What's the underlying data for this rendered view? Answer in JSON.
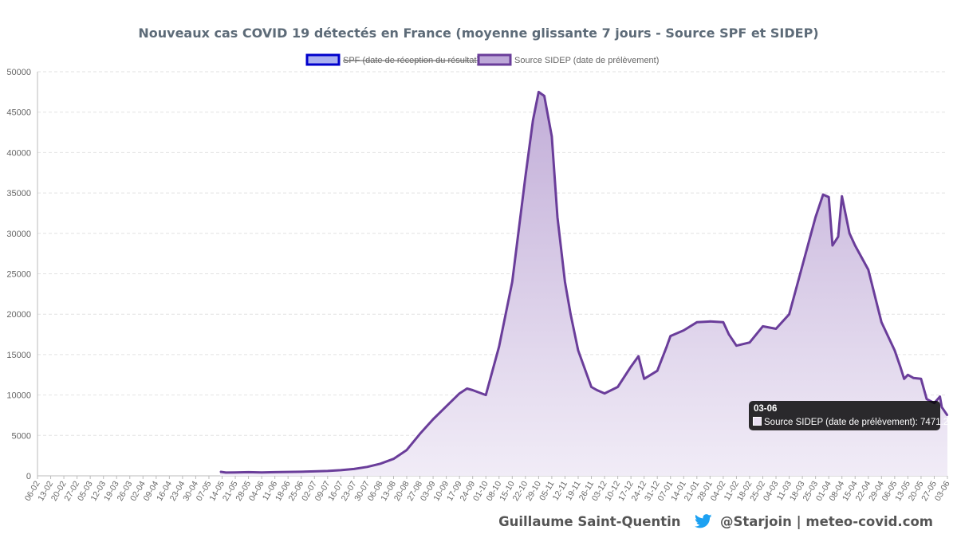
{
  "title": "Nouveaux cas COVID 19 détectés en France (moyenne glissante 7 jours - Source SPF et SIDEP)",
  "footer": {
    "author": "Guillaume Saint-Quentin",
    "handle": "@Starjoin | meteo-covid.com",
    "icon": "twitter-bird-icon"
  },
  "tooltip": {
    "title": "03-06",
    "series": "Source SIDEP (date de prélèvement)",
    "value": "7471.29"
  },
  "colors": {
    "line": "#6a3d9a",
    "fill_top": "#c2aed8",
    "fill_bottom": "#f1ecf7",
    "spf": "#0000cc",
    "grid": "#e2e2e2",
    "text": "#666666"
  },
  "chart_data": {
    "type": "area",
    "legend": [
      {
        "name": "SPF (date de réception du résultat)",
        "hidden": true,
        "color": "#0000cc"
      },
      {
        "name": "Source SIDEP (date de prélèvement)",
        "hidden": false,
        "color": "#6a3d9a"
      }
    ],
    "legend_position": "top",
    "grid": true,
    "ylim": [
      0,
      50000
    ],
    "yticks": [
      "0",
      "5000",
      "10000",
      "15000",
      "20000",
      "25000",
      "30000",
      "35000",
      "40000",
      "45000",
      "50000"
    ],
    "xticks": [
      "06-02",
      "13-02",
      "20-02",
      "27-02",
      "05-03",
      "12-03",
      "19-03",
      "26-03",
      "02-04",
      "09-04",
      "16-04",
      "23-04",
      "30-04",
      "07-05",
      "14-05",
      "21-05",
      "28-05",
      "04-06",
      "11-06",
      "18-06",
      "25-06",
      "02-07",
      "09-07",
      "16-07",
      "23-07",
      "30-07",
      "06-08",
      "13-08",
      "20-08",
      "27-08",
      "03-09",
      "10-09",
      "17-09",
      "24-09",
      "01-10",
      "08-10",
      "15-10",
      "22-10",
      "29-10",
      "05-11",
      "12-11",
      "19-11",
      "26-11",
      "03-12",
      "10-12",
      "17-12",
      "24-12",
      "31-12",
      "07-01",
      "14-01",
      "21-01",
      "28-01",
      "04-02",
      "11-02",
      "18-02",
      "25-02",
      "04-03",
      "11-03",
      "18-03",
      "25-03",
      "01-04",
      "08-04",
      "15-04",
      "22-04",
      "29-04",
      "06-05",
      "13-05",
      "20-05",
      "27-05",
      "03-06"
    ],
    "series": [
      {
        "name": "Source SIDEP (date de prélèvement)",
        "points": [
          [
            "13-05",
            500
          ],
          [
            "16-05",
            400
          ],
          [
            "21-05",
            420
          ],
          [
            "28-05",
            450
          ],
          [
            "04-06",
            420
          ],
          [
            "11-06",
            450
          ],
          [
            "18-06",
            480
          ],
          [
            "25-06",
            500
          ],
          [
            "02-07",
            550
          ],
          [
            "09-07",
            600
          ],
          [
            "16-07",
            700
          ],
          [
            "23-07",
            850
          ],
          [
            "30-07",
            1100
          ],
          [
            "06-08",
            1500
          ],
          [
            "13-08",
            2100
          ],
          [
            "20-08",
            3200
          ],
          [
            "27-08",
            5200
          ],
          [
            "03-09",
            7000
          ],
          [
            "10-09",
            8600
          ],
          [
            "17-09",
            10200
          ],
          [
            "21-09",
            10800
          ],
          [
            "24-09",
            10600
          ],
          [
            "01-10",
            10000
          ],
          [
            "08-10",
            16000
          ],
          [
            "15-10",
            24000
          ],
          [
            "22-10",
            37000
          ],
          [
            "26-10",
            44000
          ],
          [
            "29-10",
            47500
          ],
          [
            "01-11",
            47000
          ],
          [
            "05-11",
            42000
          ],
          [
            "08-11",
            32000
          ],
          [
            "12-11",
            24000
          ],
          [
            "15-11",
            20000
          ],
          [
            "19-11",
            15500
          ],
          [
            "26-11",
            11000
          ],
          [
            "29-11",
            10600
          ],
          [
            "03-12",
            10200
          ],
          [
            "10-12",
            11000
          ],
          [
            "17-12",
            13500
          ],
          [
            "21-12",
            14800
          ],
          [
            "24-12",
            12000
          ],
          [
            "31-12",
            13000
          ],
          [
            "05-01",
            16000
          ],
          [
            "07-01",
            17300
          ],
          [
            "14-01",
            18000
          ],
          [
            "21-01",
            19000
          ],
          [
            "28-01",
            19100
          ],
          [
            "04-02",
            19000
          ],
          [
            "07-02",
            17500
          ],
          [
            "11-02",
            16100
          ],
          [
            "18-02",
            16500
          ],
          [
            "25-02",
            18500
          ],
          [
            "04-03",
            18200
          ],
          [
            "11-03",
            20000
          ],
          [
            "18-03",
            26000
          ],
          [
            "25-03",
            32000
          ],
          [
            "29-03",
            34800
          ],
          [
            "01-04",
            34500
          ],
          [
            "03-04",
            28500
          ],
          [
            "06-04",
            29600
          ],
          [
            "08-04",
            34600
          ],
          [
            "12-04",
            30000
          ],
          [
            "15-04",
            28500
          ],
          [
            "22-04",
            25500
          ],
          [
            "29-04",
            19000
          ],
          [
            "06-05",
            15500
          ],
          [
            "09-05",
            13500
          ],
          [
            "11-05",
            12000
          ],
          [
            "13-05",
            12500
          ],
          [
            "16-05",
            12100
          ],
          [
            "20-05",
            12000
          ],
          [
            "23-05",
            9500
          ],
          [
            "27-05",
            9000
          ],
          [
            "30-05",
            9800
          ],
          [
            "31-05",
            8500
          ],
          [
            "03-06",
            7471.29
          ]
        ]
      }
    ]
  }
}
